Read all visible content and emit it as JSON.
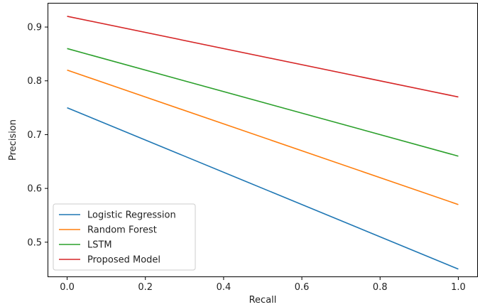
{
  "chart_data": {
    "type": "line",
    "title": "",
    "xlabel": "Recall",
    "ylabel": "Precision",
    "xlim": [
      -0.05,
      1.05
    ],
    "ylim": [
      0.435,
      0.945
    ],
    "xticks": [
      0.0,
      0.2,
      0.4,
      0.6,
      0.8,
      1.0
    ],
    "xtick_labels": [
      "0.0",
      "0.2",
      "0.4",
      "0.6",
      "0.8",
      "1.0"
    ],
    "yticks": [
      0.5,
      0.6,
      0.7,
      0.8,
      0.9
    ],
    "ytick_labels": [
      "0.5",
      "0.6",
      "0.7",
      "0.8",
      "0.9"
    ],
    "grid": false,
    "legend_position": "lower-left",
    "x": [
      0.0,
      1.0
    ],
    "series": [
      {
        "name": "Logistic Regression",
        "values": [
          0.75,
          0.45
        ],
        "color": "#1f77b4"
      },
      {
        "name": "Random Forest",
        "values": [
          0.82,
          0.57
        ],
        "color": "#ff7f0e"
      },
      {
        "name": "LSTM",
        "values": [
          0.86,
          0.66
        ],
        "color": "#2ca02c"
      },
      {
        "name": "Proposed Model",
        "values": [
          0.92,
          0.77
        ],
        "color": "#d62728"
      }
    ]
  }
}
